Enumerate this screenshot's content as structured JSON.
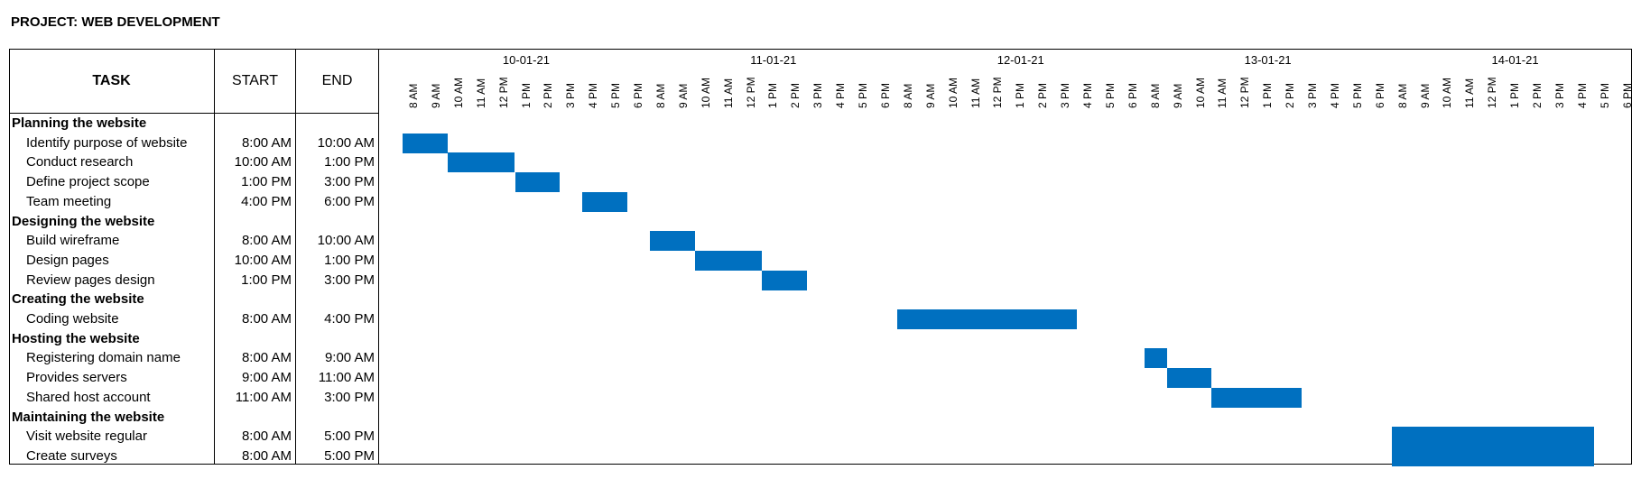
{
  "title": "PROJECT: WEB DEVELOPMENT",
  "table": {
    "headers": {
      "task": "TASK",
      "start": "START",
      "end": "END"
    }
  },
  "chart_data": {
    "type": "gantt",
    "dates": [
      "10-01-21",
      "11-01-21",
      "12-01-21",
      "13-01-21",
      "14-01-21"
    ],
    "hours": [
      "8 AM",
      "9 AM",
      "10 AM",
      "11 AM",
      "12 PM",
      "1 PM",
      "2 PM",
      "3 PM",
      "4 PM",
      "5 PM",
      "6 PM"
    ],
    "bar_color": "#0070c0",
    "rows": [
      {
        "kind": "group",
        "name": "Planning the website"
      },
      {
        "kind": "task",
        "name": "Identify purpose of website",
        "start": "8:00 AM",
        "end": "10:00 AM",
        "day": 0,
        "start_hour": 8,
        "end_hour": 10
      },
      {
        "kind": "task",
        "name": "Conduct research",
        "start": "10:00 AM",
        "end": "1:00 PM",
        "day": 0,
        "start_hour": 10,
        "end_hour": 13
      },
      {
        "kind": "task",
        "name": "Define project scope",
        "start": "1:00 PM",
        "end": "3:00 PM",
        "day": 0,
        "start_hour": 13,
        "end_hour": 15
      },
      {
        "kind": "task",
        "name": "Team meeting",
        "start": "4:00 PM",
        "end": "6:00 PM",
        "day": 0,
        "start_hour": 16,
        "end_hour": 18
      },
      {
        "kind": "group",
        "name": "Designing the website"
      },
      {
        "kind": "task",
        "name": "Build wireframe",
        "start": "8:00 AM",
        "end": "10:00 AM",
        "day": 1,
        "start_hour": 8,
        "end_hour": 10
      },
      {
        "kind": "task",
        "name": "Design pages",
        "start": "10:00 AM",
        "end": "1:00 PM",
        "day": 1,
        "start_hour": 10,
        "end_hour": 13
      },
      {
        "kind": "task",
        "name": "Review pages design",
        "start": "1:00 PM",
        "end": "3:00 PM",
        "day": 1,
        "start_hour": 13,
        "end_hour": 15
      },
      {
        "kind": "group",
        "name": "Creating the website"
      },
      {
        "kind": "task",
        "name": "Coding website",
        "start": "8:00 AM",
        "end": "4:00 PM",
        "day": 2,
        "start_hour": 8,
        "end_hour": 16
      },
      {
        "kind": "group",
        "name": "Hosting the website"
      },
      {
        "kind": "task",
        "name": "Registering domain name",
        "start": "8:00 AM",
        "end": "9:00 AM",
        "day": 3,
        "start_hour": 8,
        "end_hour": 9
      },
      {
        "kind": "task",
        "name": "Provides servers",
        "start": "9:00 AM",
        "end": "11:00 AM",
        "day": 3,
        "start_hour": 9,
        "end_hour": 11
      },
      {
        "kind": "task",
        "name": "Shared host account",
        "start": "11:00 AM",
        "end": "3:00 PM",
        "day": 3,
        "start_hour": 11,
        "end_hour": 15
      },
      {
        "kind": "group",
        "name": "Maintaining the website"
      },
      {
        "kind": "task",
        "name": "Visit website regular",
        "start": "8:00 AM",
        "end": "5:00 PM",
        "day": 4,
        "start_hour": 8,
        "end_hour": 17
      },
      {
        "kind": "task",
        "name": "Create surveys",
        "start": "8:00 AM",
        "end": "5:00 PM",
        "day": 4,
        "start_hour": 8,
        "end_hour": 17
      }
    ]
  }
}
